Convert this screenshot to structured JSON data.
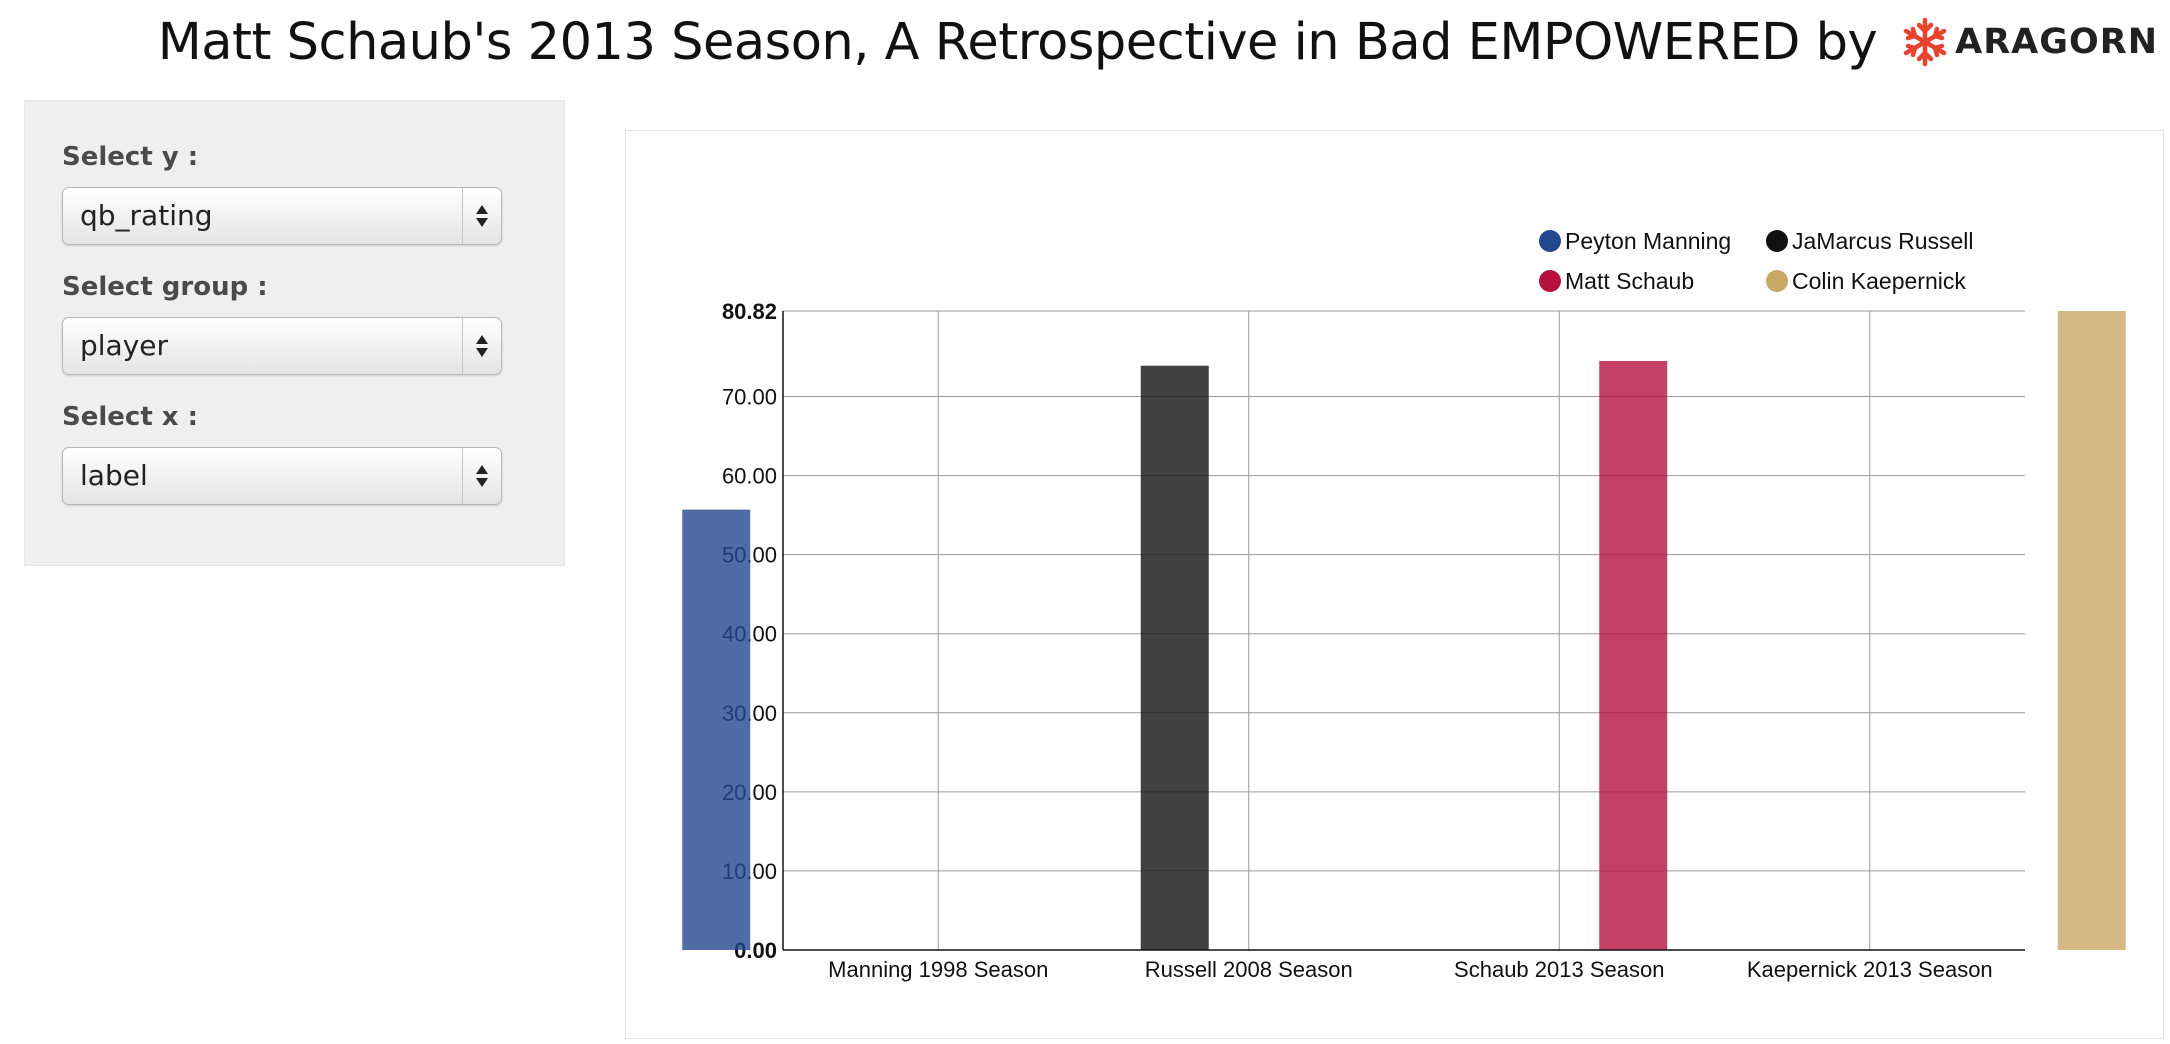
{
  "header": {
    "title": "Matt Schaub's 2013 Season, A Retrospective in Bad EMPOWERED by",
    "logo": {
      "icon": "aragorn-snowflake-logo",
      "text": "ARAGORN",
      "color": "#e8432e"
    }
  },
  "sidebar": {
    "controls": [
      {
        "label": "Select y :",
        "value": "qb_rating"
      },
      {
        "label": "Select group :",
        "value": "player"
      },
      {
        "label": "Select x :",
        "value": "label"
      }
    ]
  },
  "chart_data": {
    "type": "bar",
    "categories": [
      "Manning 1998 Season",
      "Russell 2008 Season",
      "Schaub 2013 Season",
      "Kaepernick 2013 Season"
    ],
    "series": [
      {
        "name": "Peyton Manning",
        "color": "#23478f",
        "values": [
          55.7,
          null,
          null,
          null
        ]
      },
      {
        "name": "JaMarcus Russell",
        "color": "#111111",
        "values": [
          null,
          73.9,
          null,
          null
        ]
      },
      {
        "name": "Matt Schaub",
        "color": "#b5103e",
        "values": [
          null,
          null,
          74.5,
          null
        ]
      },
      {
        "name": "Colin Kaepernick",
        "color": "#c9a866",
        "values": [
          null,
          null,
          null,
          80.82
        ]
      }
    ],
    "yticks": [
      "0.00",
      "10.00",
      "20.00",
      "30.00",
      "40.00",
      "50.00",
      "60.00",
      "70.00",
      "80.82"
    ],
    "ylim": [
      0,
      80.82
    ],
    "grid": true,
    "legend_position": "top-right",
    "title": "",
    "xlabel": "",
    "ylabel": ""
  }
}
